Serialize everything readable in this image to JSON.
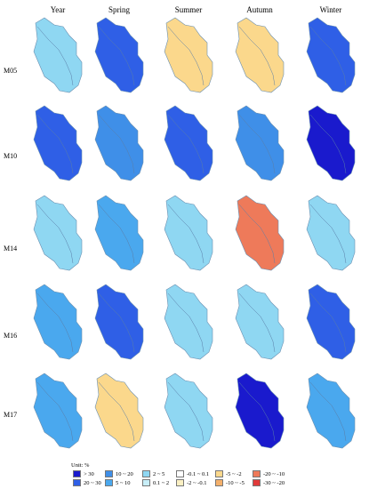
{
  "columns": [
    "Year",
    "Spring",
    "Summer",
    "Autumn",
    "Winter"
  ],
  "rows": [
    "M05",
    "M10",
    "M14",
    "M16",
    "M17"
  ],
  "legend": {
    "title": "Unit: %",
    "items": [
      {
        "label": "> 30",
        "color": "#1a1acd"
      },
      {
        "label": "20 ~ 30",
        "color": "#2f5fe6"
      },
      {
        "label": "10 ~ 20",
        "color": "#3f8fe8"
      },
      {
        "label": "5 ~ 10",
        "color": "#4aa8ee"
      },
      {
        "label": "2 ~ 5",
        "color": "#8fd7f2"
      },
      {
        "label": "0.1 ~ 2",
        "color": "#c8eef8"
      },
      {
        "label": "-0.1 ~ 0.1",
        "color": "#ffffff"
      },
      {
        "label": "-2 ~ -0.1",
        "color": "#fbf0c3"
      },
      {
        "label": "-5 ~ -2",
        "color": "#fbd88c"
      },
      {
        "label": "-10 ~ -5",
        "color": "#f4b06b"
      },
      {
        "label": "-20 ~ -10",
        "color": "#ee7a5a"
      },
      {
        "label": "-30 ~ -20",
        "color": "#e03a3a"
      }
    ]
  },
  "grid": [
    [
      "#8fd7f2",
      "#2f5fe6",
      "#fbd88c",
      "#fbd88c",
      "#2f5fe6"
    ],
    [
      "#2f5fe6",
      "#3f8fe8",
      "#2f5fe6",
      "#3f8fe8",
      "#1a1acd"
    ],
    [
      "#8fd7f2",
      "#4aa8ee",
      "#8fd7f2",
      "#ee7a5a",
      "#8fd7f2"
    ],
    [
      "#4aa8ee",
      "#2f5fe6",
      "#8fd7f2",
      "#8fd7f2",
      "#2f5fe6"
    ],
    [
      "#4aa8ee",
      "#fbd88c",
      "#8fd7f2",
      "#1a1acd",
      "#4aa8ee"
    ]
  ]
}
